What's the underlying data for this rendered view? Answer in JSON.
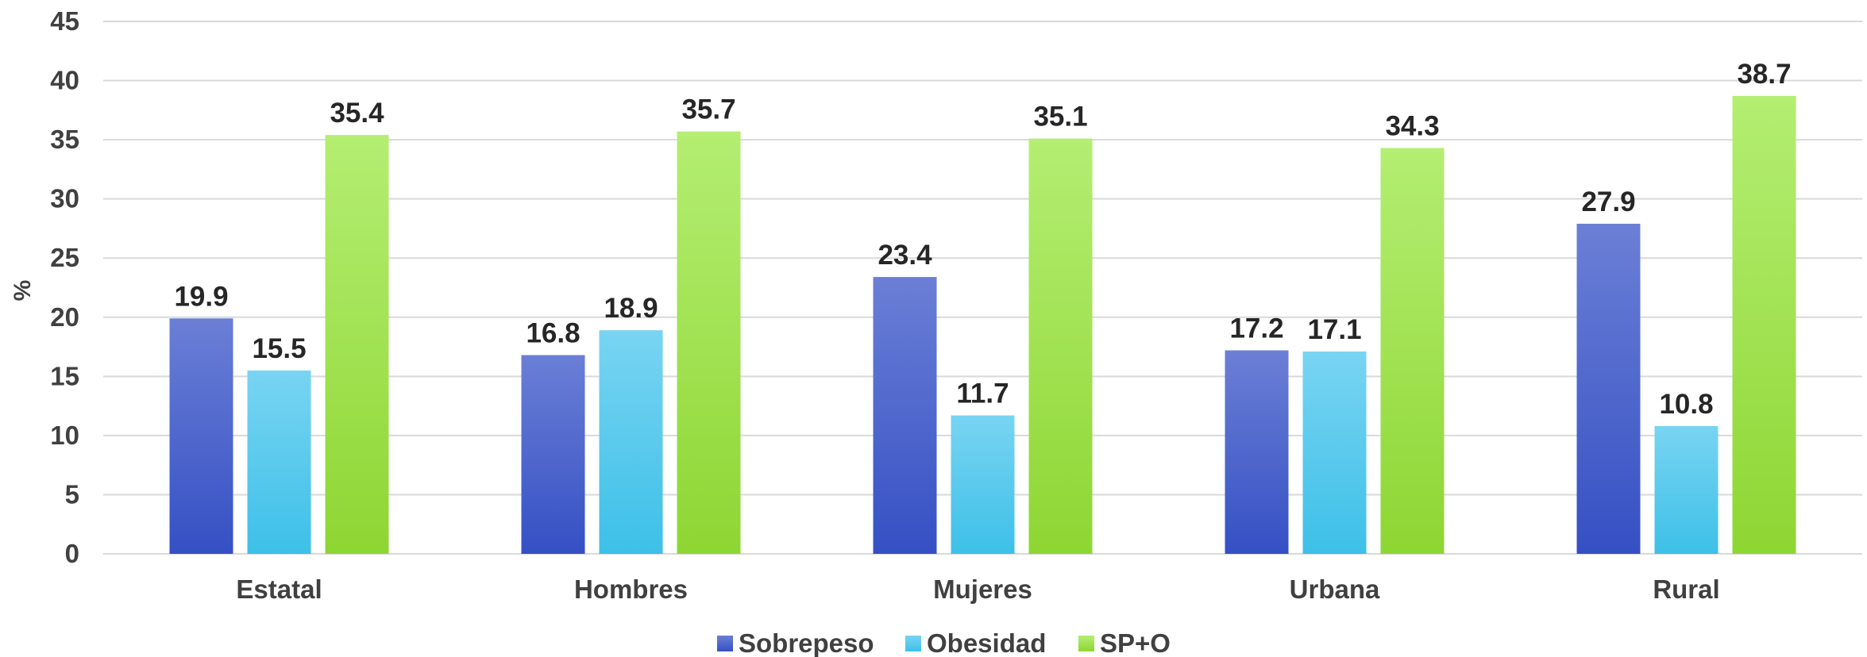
{
  "chart_data": {
    "type": "bar",
    "categories": [
      "Estatal",
      "Hombres",
      "Mujeres",
      "Urbana",
      "Rural"
    ],
    "series": [
      {
        "name": "Sobrepeso",
        "values": [
          19.9,
          16.8,
          23.4,
          17.2,
          27.9
        ],
        "color_top": "#6b7fd6",
        "color_bottom": "#3550c4"
      },
      {
        "name": "Obesidad",
        "values": [
          15.5,
          18.9,
          11.7,
          17.1,
          10.8
        ],
        "color_top": "#79d4f2",
        "color_bottom": "#3dc0e8"
      },
      {
        "name": "SP+O",
        "values": [
          35.4,
          35.7,
          35.1,
          34.3,
          38.7
        ],
        "color_top": "#b4ee72",
        "color_bottom": "#8ed633"
      }
    ],
    "value_labels": [
      [
        "19.9",
        "16.8",
        "23.4",
        "17.2",
        "27.9"
      ],
      [
        "15.5",
        "18.9",
        "11.7",
        "17.1",
        "10.8"
      ],
      [
        "35.4",
        "35.7",
        "35.1",
        "34.3",
        "38.7"
      ]
    ],
    "yticks": [
      0,
      5,
      10,
      15,
      20,
      25,
      30,
      35,
      40,
      45
    ],
    "ytick_labels": [
      "0",
      "5",
      "10",
      "15",
      "20",
      "25",
      "30",
      "35",
      "40",
      "45"
    ],
    "ylim": [
      0,
      45
    ],
    "xlabel": "",
    "ylabel": "%",
    "grid": true,
    "legend_position": "bottom-center",
    "gridline_color": "#d9d9d9"
  }
}
